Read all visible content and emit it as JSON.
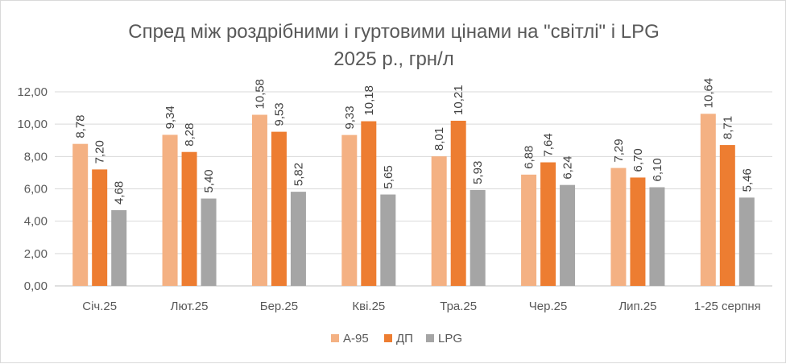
{
  "chart_data": {
    "type": "bar",
    "title": "Спред між роздрібними і гуртовими цінами на \"світлі\" і LPG",
    "subtitle": "2025 р., грн/л",
    "categories": [
      "Січ.25",
      "Лют.25",
      "Бер.25",
      "Кві.25",
      "Тра.25",
      "Чер.25",
      "Лип.25",
      "1-25 серпня"
    ],
    "series": [
      {
        "name": "А-95",
        "color": "#f4b183",
        "values": [
          8.78,
          9.34,
          10.58,
          9.33,
          8.01,
          6.88,
          7.29,
          10.64
        ],
        "labels": [
          "8,78",
          "9,34",
          "10,58",
          "9,33",
          "8,01",
          "6,88",
          "7,29",
          "10,64"
        ]
      },
      {
        "name": "ДП",
        "color": "#ed7d31",
        "values": [
          7.2,
          8.28,
          9.53,
          10.18,
          10.21,
          7.64,
          6.7,
          8.71
        ],
        "labels": [
          "7,20",
          "8,28",
          "9,53",
          "10,18",
          "10,21",
          "7,64",
          "6,70",
          "8,71"
        ]
      },
      {
        "name": "LPG",
        "color": "#a5a5a5",
        "values": [
          4.68,
          5.4,
          5.82,
          5.65,
          5.93,
          6.24,
          6.1,
          5.46
        ],
        "labels": [
          "4,68",
          "5,40",
          "5,82",
          "5,65",
          "5,93",
          "6,24",
          "6,10",
          "5,46"
        ]
      }
    ],
    "y_ticks": [
      "0,00",
      "2,00",
      "4,00",
      "6,00",
      "8,00",
      "10,00",
      "12,00"
    ],
    "ylim": [
      0,
      12
    ],
    "grid": true,
    "legend_position": "bottom"
  }
}
